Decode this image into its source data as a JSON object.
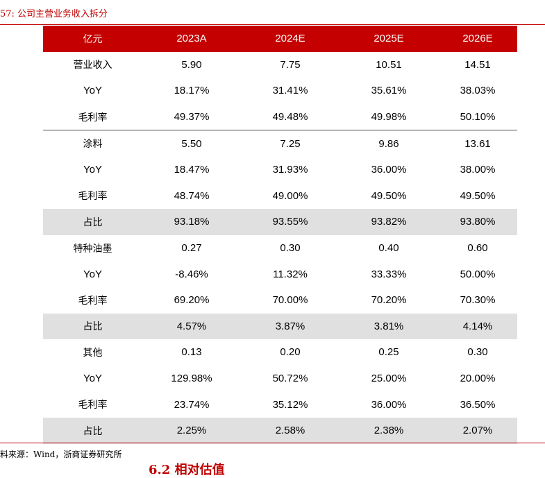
{
  "caption": "57:  公司主营业务收入拆分",
  "header": [
    "亿元",
    "2023A",
    "2024E",
    "2025E",
    "2026E"
  ],
  "rows": [
    {
      "label": "营业收入",
      "values": [
        "5.90",
        "7.75",
        "10.51",
        "14.51"
      ]
    },
    {
      "label": "YoY",
      "values": [
        "18.17%",
        "31.41%",
        "35.61%",
        "38.03%"
      ]
    },
    {
      "label": "毛利率",
      "values": [
        "49.37%",
        "49.48%",
        "49.98%",
        "50.10%"
      ]
    },
    {
      "label": "涂料",
      "values": [
        "5.50",
        "7.25",
        "9.86",
        "13.61"
      ]
    },
    {
      "label": "YoY",
      "values": [
        "18.47%",
        "31.93%",
        "36.00%",
        "38.00%"
      ]
    },
    {
      "label": "毛利率",
      "values": [
        "48.74%",
        "49.00%",
        "49.50%",
        "49.50%"
      ]
    },
    {
      "label": "占比",
      "values": [
        "93.18%",
        "93.55%",
        "93.82%",
        "93.80%"
      ]
    },
    {
      "label": "特种油墨",
      "values": [
        "0.27",
        "0.30",
        "0.40",
        "0.60"
      ]
    },
    {
      "label": "YoY",
      "values": [
        "-8.46%",
        "11.32%",
        "33.33%",
        "50.00%"
      ]
    },
    {
      "label": "毛利率",
      "values": [
        "69.20%",
        "70.00%",
        "70.20%",
        "70.30%"
      ]
    },
    {
      "label": "占比",
      "values": [
        "4.57%",
        "3.87%",
        "3.81%",
        "4.14%"
      ]
    },
    {
      "label": "其他",
      "values": [
        "0.13",
        "0.20",
        "0.25",
        "0.30"
      ]
    },
    {
      "label": "YoY",
      "values": [
        "129.98%",
        "50.72%",
        "25.00%",
        "20.00%"
      ]
    },
    {
      "label": "毛利率",
      "values": [
        "23.74%",
        "35.12%",
        "36.00%",
        "36.50%"
      ]
    },
    {
      "label": "占比",
      "values": [
        "2.25%",
        "2.58%",
        "2.38%",
        "2.07%"
      ]
    }
  ],
  "source": "料来源：Wind，浙商证券研究所",
  "next_heading": "6.2 相对估值",
  "colors": {
    "accent": "#c40000",
    "shade": "#e0e0e0"
  }
}
